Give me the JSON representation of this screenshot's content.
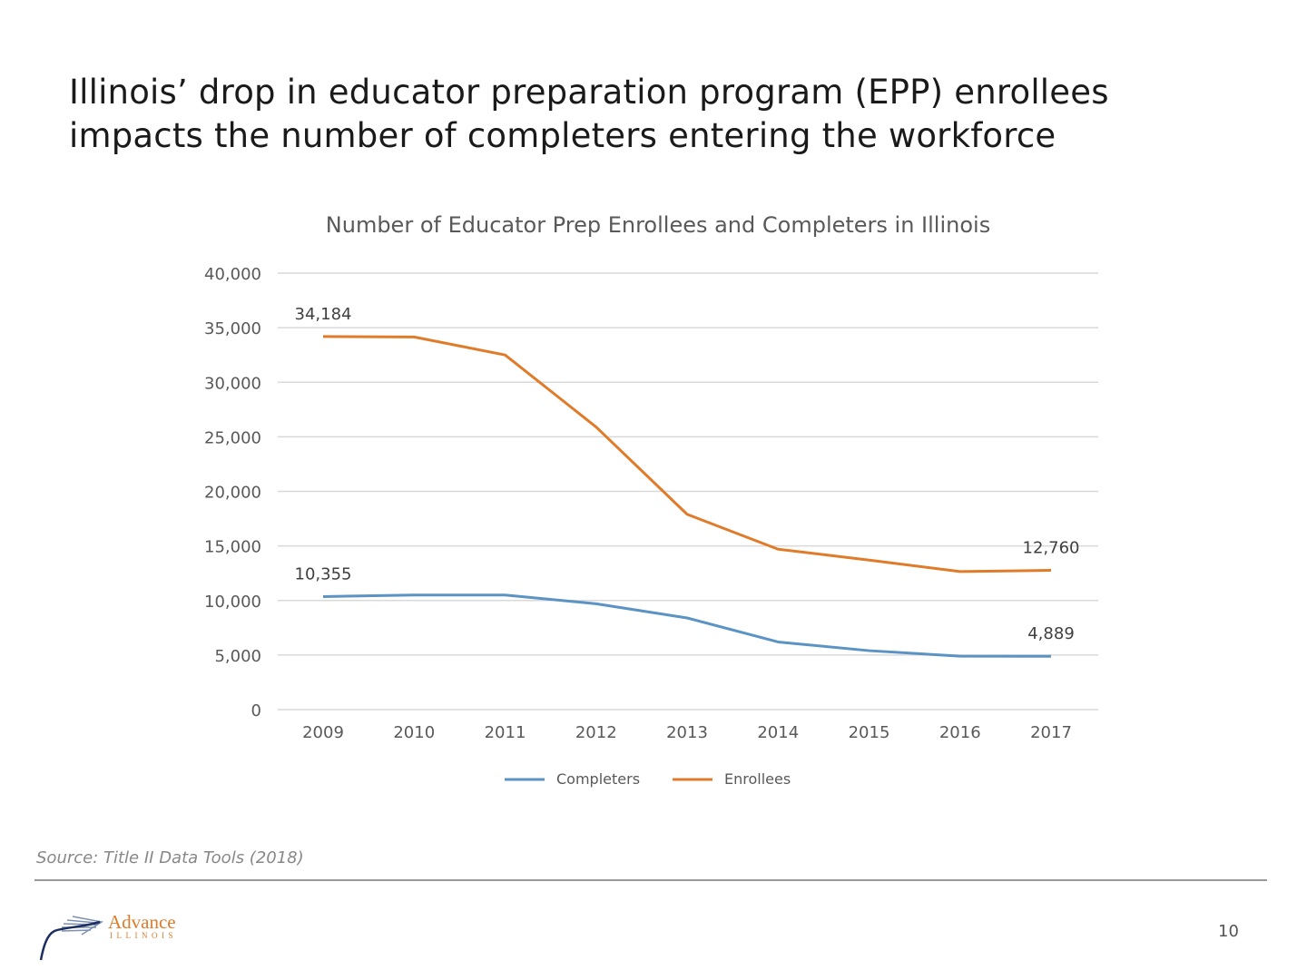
{
  "slide": {
    "title_lines": [
      "Illinois’ drop in educator preparation program (EPP) enrollees",
      "impacts the number of completers entering the workforce"
    ],
    "source": "Source: Title II Data Tools (2018)",
    "page_number": "10",
    "logo": {
      "name": "Advance",
      "sub": "ILLINOIS"
    }
  },
  "chart_data": {
    "type": "line",
    "title": "Number of Educator Prep Enrollees and Completers in Illinois",
    "xlabel": "",
    "ylabel": "",
    "categories": [
      "2009",
      "2010",
      "2011",
      "2012",
      "2013",
      "2014",
      "2015",
      "2016",
      "2017"
    ],
    "ylim": [
      0,
      40000
    ],
    "yticks": [
      "0",
      "5,000",
      "10,000",
      "15,000",
      "20,000",
      "25,000",
      "30,000",
      "35,000",
      "40,000"
    ],
    "grid": true,
    "legend_position": "bottom",
    "series": [
      {
        "name": "Completers",
        "color": "#5b93c4",
        "values": [
          10355,
          10500,
          10500,
          9700,
          8400,
          6200,
          5400,
          4900,
          4889
        ],
        "labels": {
          "0": "10,355",
          "8": "4,889"
        }
      },
      {
        "name": "Enrollees",
        "color": "#e07b2a",
        "values": [
          34184,
          34150,
          32500,
          25900,
          17900,
          14700,
          13700,
          12650,
          12760
        ],
        "labels": {
          "0": "34,184",
          "8": "12,760"
        }
      }
    ]
  }
}
